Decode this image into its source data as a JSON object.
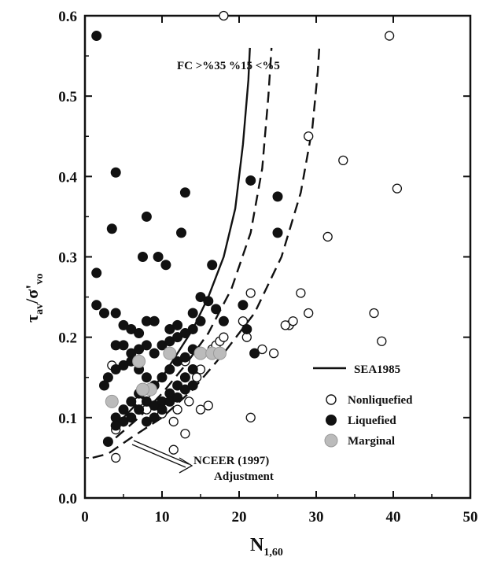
{
  "chart_data": {
    "type": "scatter",
    "xlabel": "N",
    "xlabel_sub": "1,60",
    "ylabel_main": "τ",
    "ylabel_sub1": "av",
    "ylabel_mid": "/σ'",
    "ylabel_sub2": "vo",
    "xlim": [
      0,
      50
    ],
    "ylim": [
      0,
      0.6
    ],
    "xticks": [
      0,
      10,
      20,
      30,
      40,
      50
    ],
    "yticks": [
      0.0,
      0.1,
      0.2,
      0.3,
      0.4,
      0.5,
      0.6
    ],
    "ytick_labels": [
      "0.0",
      "0.1",
      "0.2",
      "0.3",
      "0.4",
      "0.5",
      "0.6"
    ],
    "legend_position": "lower-right",
    "colors": {
      "marginal": "#bbbbbb",
      "ink": "#111111"
    },
    "annotations": {
      "fc_label": "FC >%35  %15  <%5",
      "nceer_line1": "NCEER (1997)",
      "nceer_line2": "Adjustment"
    },
    "curves": [
      {
        "name": "SEA1985",
        "style": "solid",
        "label": "FC >%35",
        "points": [
          [
            4,
            0.09
          ],
          [
            6,
            0.11
          ],
          [
            8,
            0.13
          ],
          [
            10,
            0.15
          ],
          [
            12,
            0.18
          ],
          [
            14,
            0.21
          ],
          [
            16,
            0.25
          ],
          [
            18,
            0.3
          ],
          [
            19.5,
            0.36
          ],
          [
            20.5,
            0.44
          ],
          [
            21.2,
            0.52
          ],
          [
            21.4,
            0.56
          ]
        ]
      },
      {
        "name": "",
        "style": "dashed",
        "label": "%15",
        "points": [
          [
            4,
            0.075
          ],
          [
            7,
            0.1
          ],
          [
            10,
            0.13
          ],
          [
            13,
            0.165
          ],
          [
            16,
            0.205
          ],
          [
            19,
            0.26
          ],
          [
            21.5,
            0.33
          ],
          [
            23,
            0.41
          ],
          [
            23.8,
            0.5
          ],
          [
            24.2,
            0.56
          ]
        ]
      },
      {
        "name": "",
        "style": "dashed",
        "label": "<%5",
        "points": [
          [
            1,
            0.05
          ],
          [
            3,
            0.055
          ],
          [
            6,
            0.075
          ],
          [
            10,
            0.1
          ],
          [
            14,
            0.135
          ],
          [
            18,
            0.18
          ],
          [
            22,
            0.23
          ],
          [
            25.5,
            0.3
          ],
          [
            28,
            0.38
          ],
          [
            29.5,
            0.46
          ],
          [
            30.2,
            0.53
          ],
          [
            30.4,
            0.56
          ]
        ]
      }
    ],
    "series": [
      {
        "name": "Nonliquefied",
        "marker": "open",
        "x": [
          18,
          39.5,
          29,
          33.5,
          40.5,
          31.5,
          26.5,
          21.5,
          28,
          29,
          37.5,
          20.5,
          26,
          27,
          21,
          23,
          24.5,
          38.5,
          21.5,
          11.5,
          13,
          15,
          16,
          3.5,
          4,
          6,
          8,
          9,
          10,
          11.5,
          12,
          13.5,
          14,
          14.5,
          15,
          16.5,
          17,
          17.5,
          18,
          12,
          13,
          7,
          8,
          4
        ],
        "y": [
          0.6,
          0.575,
          0.45,
          0.42,
          0.385,
          0.325,
          0.215,
          0.255,
          0.255,
          0.23,
          0.23,
          0.22,
          0.215,
          0.22,
          0.2,
          0.185,
          0.18,
          0.195,
          0.1,
          0.06,
          0.08,
          0.11,
          0.115,
          0.165,
          0.05,
          0.1,
          0.11,
          0.1,
          0.105,
          0.095,
          0.11,
          0.12,
          0.14,
          0.15,
          0.16,
          0.185,
          0.19,
          0.195,
          0.2,
          0.14,
          0.17,
          0.12,
          0.13,
          0.085
        ]
      },
      {
        "name": "Liquefied",
        "marker": "filled",
        "x": [
          1.5,
          4,
          13,
          21.5,
          25,
          3.5,
          7.5,
          9.5,
          8,
          10.5,
          12.5,
          1.5,
          16.5,
          25,
          1.5,
          2.5,
          4,
          5,
          6,
          7,
          8,
          9,
          11,
          12,
          14,
          15,
          16,
          17,
          18,
          20.5,
          21,
          22,
          4,
          5,
          6,
          7,
          8,
          9,
          10,
          11,
          12,
          13,
          14,
          15,
          2.5,
          3,
          4,
          5,
          6,
          7,
          8,
          9,
          10,
          11,
          12,
          13,
          14,
          4,
          5,
          6,
          7,
          8,
          9,
          10,
          11,
          12,
          13,
          14,
          3,
          4,
          5,
          6,
          7,
          8,
          9,
          10,
          11,
          12,
          13,
          14
        ],
        "y": [
          0.575,
          0.405,
          0.38,
          0.395,
          0.375,
          0.335,
          0.3,
          0.3,
          0.35,
          0.29,
          0.33,
          0.28,
          0.29,
          0.33,
          0.24,
          0.23,
          0.23,
          0.215,
          0.21,
          0.205,
          0.22,
          0.22,
          0.21,
          0.215,
          0.23,
          0.25,
          0.245,
          0.235,
          0.22,
          0.24,
          0.21,
          0.18,
          0.19,
          0.19,
          0.18,
          0.185,
          0.19,
          0.18,
          0.19,
          0.195,
          0.2,
          0.205,
          0.21,
          0.22,
          0.14,
          0.15,
          0.16,
          0.165,
          0.17,
          0.16,
          0.15,
          0.14,
          0.15,
          0.16,
          0.17,
          0.175,
          0.185,
          0.1,
          0.11,
          0.12,
          0.13,
          0.12,
          0.115,
          0.12,
          0.13,
          0.14,
          0.15,
          0.16,
          0.07,
          0.09,
          0.095,
          0.1,
          0.11,
          0.095,
          0.1,
          0.11,
          0.12,
          0.125,
          0.135,
          0.14
        ]
      },
      {
        "name": "Marginal",
        "marker": "gray",
        "x": [
          3.5,
          7,
          8.5,
          11,
          15,
          16.5,
          17.5,
          7.5
        ],
        "y": [
          0.12,
          0.17,
          0.135,
          0.18,
          0.18,
          0.18,
          0.18,
          0.135
        ]
      }
    ]
  }
}
